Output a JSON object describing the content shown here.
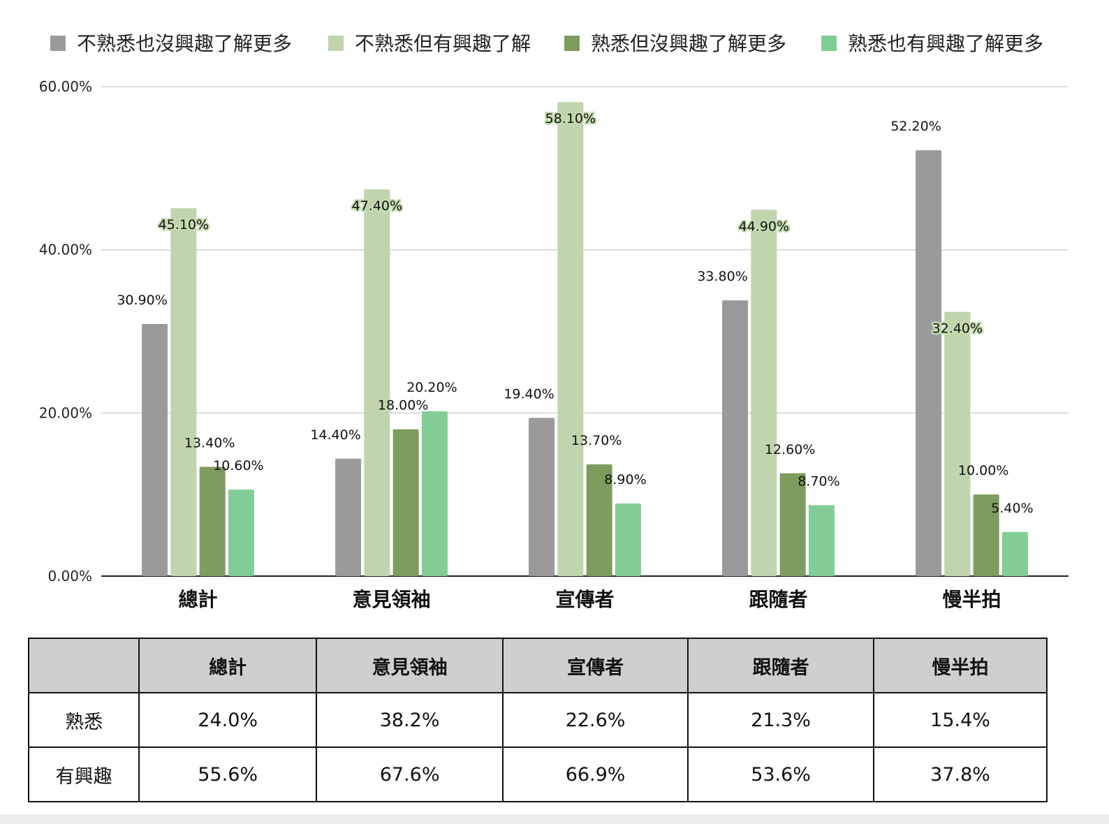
{
  "chart_data": {
    "type": "bar",
    "categories": [
      "總計",
      "意見領袖",
      "宣傳者",
      "跟隨者",
      "慢半拍"
    ],
    "series": [
      {
        "name": "不熟悉也沒興趣了解更多",
        "color": "#9a9a9a",
        "values": [
          30.9,
          14.4,
          19.4,
          33.8,
          52.2
        ],
        "labels": [
          "30.90%",
          "14.40%",
          "19.40%",
          "33.80%",
          "52.20%"
        ]
      },
      {
        "name": "不熟悉但有興趣了解",
        "color": "#c0d4ae",
        "values": [
          45.1,
          47.4,
          58.1,
          44.9,
          32.4
        ],
        "labels": [
          "45.10%",
          "47.40%",
          "58.10%",
          "44.90%",
          "32.40%"
        ]
      },
      {
        "name": "熟悉但沒興趣了解更多",
        "color": "#7e9c5e",
        "values": [
          13.4,
          18.0,
          13.7,
          12.6,
          10.0
        ],
        "labels": [
          "13.40%",
          "18.00%",
          "13.70%",
          "12.60%",
          "10.00%"
        ]
      },
      {
        "name": "熟悉也有興趣了解更多",
        "color": "#82cd95",
        "values": [
          10.6,
          20.2,
          8.9,
          8.7,
          5.4
        ],
        "labels": [
          "10.60%",
          "20.20%",
          "8.90%",
          "8.70%",
          "5.40%"
        ]
      }
    ],
    "yticks": [
      "0.00%",
      "20.00%",
      "40.00%",
      "60.00%"
    ],
    "ylim": [
      0,
      60
    ],
    "grid": true,
    "legend_position": "top"
  },
  "table": {
    "headers": [
      "",
      "總計",
      "意見領袖",
      "宣傳者",
      "跟隨者",
      "慢半拍"
    ],
    "rows": [
      {
        "label": "熟悉",
        "values": [
          "24.0%",
          "38.2%",
          "22.6%",
          "21.3%",
          "15.4%"
        ]
      },
      {
        "label": "有興趣",
        "values": [
          "55.6%",
          "67.6%",
          "66.9%",
          "53.6%",
          "37.8%"
        ]
      }
    ]
  }
}
